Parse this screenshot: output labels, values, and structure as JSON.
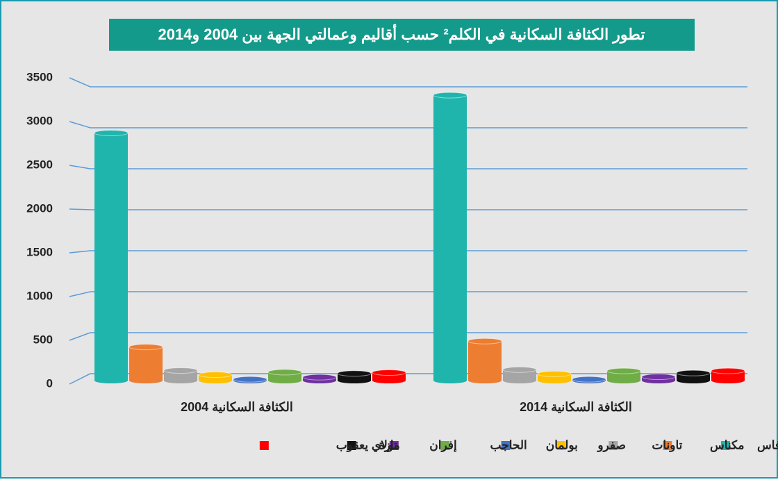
{
  "chart_data": {
    "type": "bar",
    "title": "تطور الكثافة السكانية في الكلم² حسب أقاليم وعمالتي الجهة بين 2004 و2014",
    "categories": [
      "الكثافة السكانية 2004",
      "الكثافة السكانية 2014"
    ],
    "series": [
      {
        "name": "فاس",
        "color": "#1fb5ad",
        "values": [
          2950,
          3400
        ]
      },
      {
        "name": "مكناس",
        "color": "#ed7d31",
        "values": [
          400,
          470
        ]
      },
      {
        "name": "تاونات",
        "color": "#a5a5a5",
        "values": [
          120,
          130
        ]
      },
      {
        "name": "صفرو",
        "color": "#ffc000",
        "values": [
          70,
          80
        ]
      },
      {
        "name": "بولمان",
        "color": "#4472c4",
        "values": [
          15,
          15
        ]
      },
      {
        "name": "الحاجب",
        "color": "#70ad47",
        "values": [
          100,
          115
        ]
      },
      {
        "name": "إفران",
        "color": "#7030a0",
        "values": [
          40,
          45
        ]
      },
      {
        "name": "تازة",
        "color": "#111111",
        "values": [
          85,
          90
        ]
      },
      {
        "name": "مولاي يعقوب",
        "color": "#ff0000",
        "values": [
          95,
          115
        ]
      }
    ],
    "ylim": [
      0,
      3500
    ],
    "yticks": [
      0,
      500,
      1000,
      1500,
      2000,
      2500,
      3000,
      3500
    ],
    "grid": true
  }
}
